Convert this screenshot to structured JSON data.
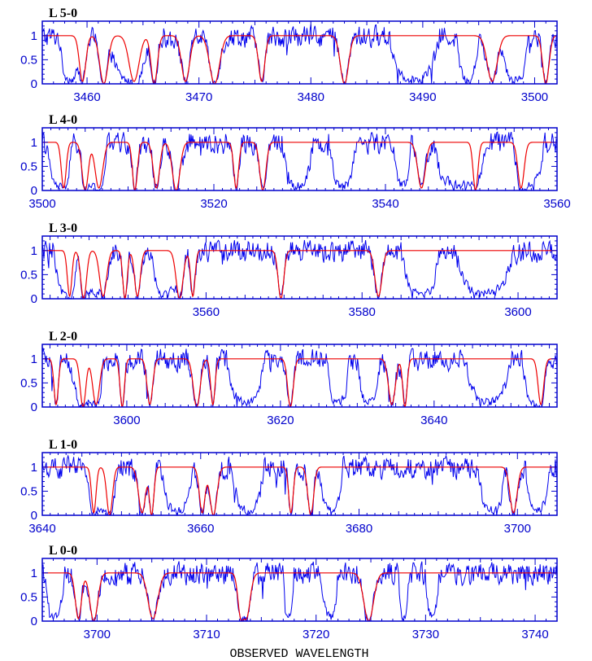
{
  "figure": {
    "xlabel": "OBSERVED WAVELENGTH",
    "colors": {
      "axes": "#0000cc",
      "data": "#0000ee",
      "model": "#ee0000",
      "text": "#000000"
    }
  },
  "chart_data": [
    {
      "type": "line",
      "title": "L 5-0",
      "xlim": [
        3456,
        3502
      ],
      "ylim": [
        0,
        1.3
      ],
      "xticks": [
        3460,
        3470,
        3480,
        3490,
        3500
      ],
      "yticks": [
        0,
        0.5,
        1
      ],
      "ytick_labels": [
        "0",
        "0.5",
        "1"
      ],
      "absorption_lines": [
        3459.6,
        3461.5,
        3464.2,
        3466.0,
        3468.8,
        3471.4,
        3475.6,
        3483.0,
        3496.2,
        3501.0
      ],
      "troughs": [
        [
          3457.5,
          3459.5
        ],
        [
          3462.0,
          3465.5
        ],
        [
          3487.0,
          3491.5
        ],
        [
          3493.0,
          3495.0
        ],
        [
          3497.0,
          3499.5
        ]
      ],
      "series": [
        {
          "name": "",
          "style": "observed spectrum",
          "color": "#0000ee"
        },
        {
          "name": "",
          "style": "model fit",
          "color": "#ee0000"
        }
      ]
    },
    {
      "type": "line",
      "title": "L 4-0",
      "xlim": [
        3500,
        3560
      ],
      "ylim": [
        0,
        1.3
      ],
      "xticks": [
        3500,
        3520,
        3540,
        3560
      ],
      "yticks": [
        0,
        0.5,
        1
      ],
      "ytick_labels": [
        "0",
        "0.5",
        "1"
      ],
      "absorption_lines": [
        3502.5,
        3505.0,
        3506.6,
        3510.8,
        3513.3,
        3515.6,
        3522.6,
        3525.7,
        3544.2,
        3550.5,
        3555.8
      ],
      "troughs": [
        [
          3500.5,
          3503.5
        ],
        [
          3504.5,
          3507.5
        ],
        [
          3528.0,
          3531.5
        ],
        [
          3533.5,
          3536.5
        ],
        [
          3541.0,
          3543.0
        ],
        [
          3545.5,
          3552.0
        ],
        [
          3555.0,
          3558.5
        ]
      ],
      "series": [
        {
          "name": "",
          "style": "observed spectrum",
          "color": "#0000ee"
        },
        {
          "name": "",
          "style": "model fit",
          "color": "#ee0000"
        }
      ]
    },
    {
      "type": "line",
      "title": "L 3-0",
      "xlim": [
        3539,
        3605
      ],
      "ylim": [
        0,
        1.3
      ],
      "xticks": [
        3560,
        3580,
        3600
      ],
      "yticks": [
        0,
        0.5,
        1
      ],
      "ytick_labels": [
        "0",
        "0.5",
        "1"
      ],
      "absorption_lines": [
        3542.5,
        3544.3,
        3546.8,
        3549.6,
        3551.2,
        3556.6,
        3558.3,
        3569.6,
        3582.1
      ],
      "troughs": [
        [
          3540.5,
          3543.5
        ],
        [
          3544.0,
          3547.0
        ],
        [
          3553.0,
          3556.5
        ],
        [
          3585.0,
          3590.0
        ],
        [
          3592.0,
          3599.5
        ]
      ],
      "series": [
        {
          "name": "",
          "style": "observed spectrum",
          "color": "#0000ee"
        },
        {
          "name": "",
          "style": "model fit",
          "color": "#ee0000"
        }
      ]
    },
    {
      "type": "line",
      "title": "L 2-0",
      "xlim": [
        3589,
        3656
      ],
      "ylim": [
        0,
        1.3
      ],
      "xticks": [
        3600,
        3620,
        3640
      ],
      "yticks": [
        0,
        0.5,
        1
      ],
      "ytick_labels": [
        "0",
        "0.5",
        "1"
      ],
      "absorption_lines": [
        3590.8,
        3594.3,
        3596.0,
        3599.4,
        3603.0,
        3609.1,
        3611.2,
        3621.3,
        3634.5,
        3636.2,
        3653.9
      ],
      "troughs": [
        [
          3592.5,
          3597.0
        ],
        [
          3613.0,
          3618.0
        ],
        [
          3626.0,
          3629.0
        ],
        [
          3630.0,
          3633.0
        ],
        [
          3644.0,
          3650.0
        ],
        [
          3651.5,
          3654.5
        ]
      ],
      "series": [
        {
          "name": "",
          "style": "observed spectrum",
          "color": "#0000ee"
        },
        {
          "name": "",
          "style": "model fit",
          "color": "#ee0000"
        }
      ]
    },
    {
      "type": "line",
      "title": "L 1-0",
      "xlim": [
        3640,
        3705
      ],
      "ylim": [
        0,
        1.3
      ],
      "xticks": [
        3640,
        3660,
        3680,
        3700
      ],
      "yticks": [
        0,
        0.5,
        1
      ],
      "ytick_labels": [
        "0",
        "0.5",
        "1"
      ],
      "absorption_lines": [
        3646.5,
        3648.5,
        3652.6,
        3653.8,
        3660.2,
        3661.6,
        3671.4,
        3673.9,
        3699.5
      ],
      "troughs": [
        [
          3645.5,
          3649.5
        ],
        [
          3655.0,
          3659.0
        ],
        [
          3664.0,
          3668.0
        ],
        [
          3675.0,
          3678.0
        ],
        [
          3695.0,
          3698.5
        ],
        [
          3701.0,
          3704.0
        ]
      ],
      "series": [
        {
          "name": "",
          "style": "observed spectrum",
          "color": "#0000ee"
        },
        {
          "name": "",
          "style": "model fit",
          "color": "#ee0000"
        }
      ]
    },
    {
      "type": "line",
      "title": "L 0-0",
      "xlim": [
        3695,
        3742
      ],
      "ylim": [
        0,
        1.3
      ],
      "xticks": [
        3700,
        3710,
        3720,
        3730,
        3740
      ],
      "yticks": [
        0,
        0.5,
        1
      ],
      "ytick_labels": [
        "0",
        "0.5",
        "1"
      ],
      "absorption_lines": [
        3698.3,
        3699.7,
        3705.1,
        3713.2,
        3713.6,
        3724.8
      ],
      "troughs": [
        [
          3695.2,
          3697.0
        ],
        [
          3720.5,
          3722.0
        ],
        [
          3717.0,
          3718.0
        ],
        [
          3730.0,
          3731.2
        ],
        [
          3727.5,
          3728.5
        ]
      ],
      "series": [
        {
          "name": "",
          "style": "observed spectrum",
          "color": "#0000ee"
        },
        {
          "name": "",
          "style": "model fit",
          "color": "#ee0000"
        }
      ]
    }
  ]
}
